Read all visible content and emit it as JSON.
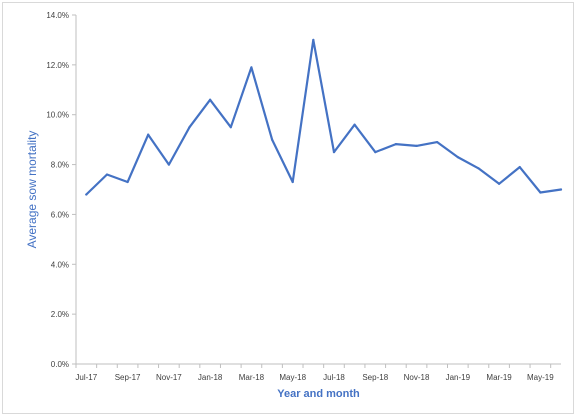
{
  "chart_data": {
    "type": "line",
    "title": "",
    "xlabel": "Year and month",
    "ylabel": "Average sow mortality",
    "ylim": [
      0,
      0.14
    ],
    "yticks": [
      0.0,
      0.02,
      0.04,
      0.06,
      0.08,
      0.1,
      0.12,
      0.14
    ],
    "ytick_labels": [
      "0.0%",
      "2.0%",
      "4.0%",
      "6.0%",
      "8.0%",
      "10.0%",
      "12.0%",
      "14.0%"
    ],
    "x_tick_labels": [
      "Jul-17",
      "Sep-17",
      "Nov-17",
      "Jan-18",
      "Mar-18",
      "May-18",
      "Jul-18",
      "Sep-18",
      "Nov-18",
      "Jan-19",
      "Mar-19",
      "May-19"
    ],
    "categories": [
      "Jul-17",
      "Aug-17",
      "Sep-17",
      "Oct-17",
      "Nov-17",
      "Dec-17",
      "Jan-18",
      "Feb-18",
      "Mar-18",
      "Apr-18",
      "May-18",
      "Jun-18",
      "Jul-18",
      "Aug-18",
      "Sep-18",
      "Oct-18",
      "Nov-18",
      "Dec-18",
      "Jan-19",
      "Feb-19",
      "Mar-19",
      "Apr-19",
      "May-19",
      "Jun-19"
    ],
    "series": [
      {
        "values": [
          0.068,
          0.076,
          0.073,
          0.092,
          0.08,
          0.095,
          0.106,
          0.095,
          0.119,
          0.09,
          0.073,
          0.13,
          0.085,
          0.096,
          0.085,
          0.0882,
          0.0875,
          0.089,
          0.083,
          0.0785,
          0.0723,
          0.079,
          0.0688,
          0.07
        ],
        "color": "#4472c4"
      }
    ],
    "grid": false,
    "legend": "none"
  }
}
